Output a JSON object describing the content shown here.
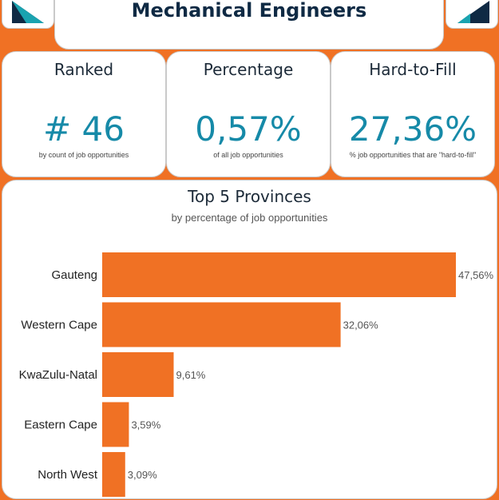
{
  "header": {
    "title": "Mechanical Engineers"
  },
  "kpis": [
    {
      "label": "Ranked",
      "value": "# 46",
      "caption": "by count of job opportunities"
    },
    {
      "label": "Percentage",
      "value": "0,57%",
      "caption": "of all job opportunities"
    },
    {
      "label": "Hard-to-Fill",
      "value": "27,36%",
      "caption": "% job opportunities that are \"hard-to-fill\""
    }
  ],
  "colors": {
    "background": "#f07124",
    "bar": "#f07124",
    "accent_teal": "#168aa8",
    "navy": "#0f2a44"
  },
  "icons": {
    "left_logo": "logo-icon",
    "right_logo": "logo-icon"
  },
  "chart_data": {
    "type": "bar",
    "orientation": "horizontal",
    "title": "Top 5 Provinces",
    "subtitle": "by percentage of job opportunities",
    "categories": [
      "Gauteng",
      "Western Cape",
      "KwaZulu-Natal",
      "Eastern Cape",
      "North West"
    ],
    "values": [
      47.56,
      32.06,
      9.61,
      3.59,
      3.09
    ],
    "value_labels": [
      "47,56%",
      "32,06%",
      "9,61%",
      "3,59%",
      "3,09%"
    ],
    "xlim": [
      0,
      47.56
    ],
    "grid": false,
    "legend": "none"
  }
}
